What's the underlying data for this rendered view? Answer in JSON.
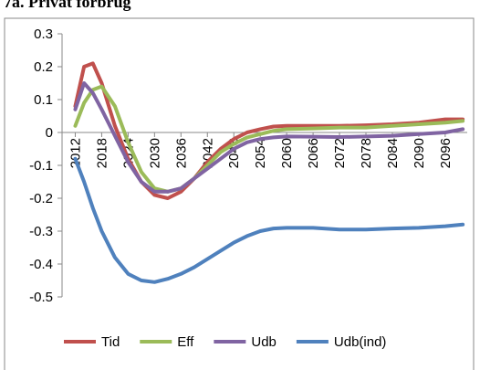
{
  "chart_data": {
    "type": "line",
    "title": "7a. Privat forbrug",
    "x": [
      2012,
      2014,
      2016,
      2018,
      2021,
      2024,
      2027,
      2030,
      2033,
      2036,
      2039,
      2042,
      2045,
      2048,
      2051,
      2054,
      2057,
      2060,
      2066,
      2072,
      2078,
      2084,
      2090,
      2096,
      2100
    ],
    "xlim": [
      2009,
      2101
    ],
    "xticks": [
      2012,
      2018,
      2024,
      2030,
      2036,
      2042,
      2048,
      2054,
      2060,
      2066,
      2072,
      2078,
      2084,
      2090,
      2096
    ],
    "ylim": [
      -0.5,
      0.3
    ],
    "yticks": [
      0.3,
      0.2,
      0.1,
      0,
      -0.1,
      -0.2,
      -0.3,
      -0.4,
      -0.5
    ],
    "grid": false,
    "legend": "bottom",
    "series": [
      {
        "name": "Tid",
        "color": "#c0504d",
        "values": [
          0.08,
          0.2,
          0.21,
          0.15,
          0.02,
          -0.08,
          -0.15,
          -0.19,
          -0.2,
          -0.18,
          -0.14,
          -0.09,
          -0.05,
          -0.02,
          0.0,
          0.01,
          0.018,
          0.02,
          0.02,
          0.02,
          0.022,
          0.025,
          0.03,
          0.04,
          0.04
        ]
      },
      {
        "name": "Eff",
        "color": "#9bbb59",
        "values": [
          0.02,
          0.09,
          0.13,
          0.14,
          0.08,
          -0.03,
          -0.12,
          -0.17,
          -0.18,
          -0.17,
          -0.14,
          -0.1,
          -0.06,
          -0.035,
          -0.015,
          -0.005,
          0.005,
          0.01,
          0.012,
          0.015,
          0.015,
          0.02,
          0.025,
          0.03,
          0.035
        ]
      },
      {
        "name": "Udb",
        "color": "#8064a2",
        "values": [
          0.07,
          0.15,
          0.12,
          0.07,
          -0.01,
          -0.09,
          -0.15,
          -0.18,
          -0.18,
          -0.17,
          -0.14,
          -0.11,
          -0.08,
          -0.05,
          -0.03,
          -0.02,
          -0.015,
          -0.012,
          -0.013,
          -0.014,
          -0.012,
          -0.01,
          -0.005,
          0.0,
          0.01
        ]
      },
      {
        "name": "Udb(ind)",
        "color": "#4f81bd",
        "values": [
          -0.08,
          -0.15,
          -0.23,
          -0.3,
          -0.38,
          -0.43,
          -0.45,
          -0.455,
          -0.445,
          -0.43,
          -0.41,
          -0.385,
          -0.36,
          -0.335,
          -0.315,
          -0.3,
          -0.292,
          -0.29,
          -0.29,
          -0.295,
          -0.295,
          -0.292,
          -0.29,
          -0.285,
          -0.28
        ]
      }
    ]
  }
}
